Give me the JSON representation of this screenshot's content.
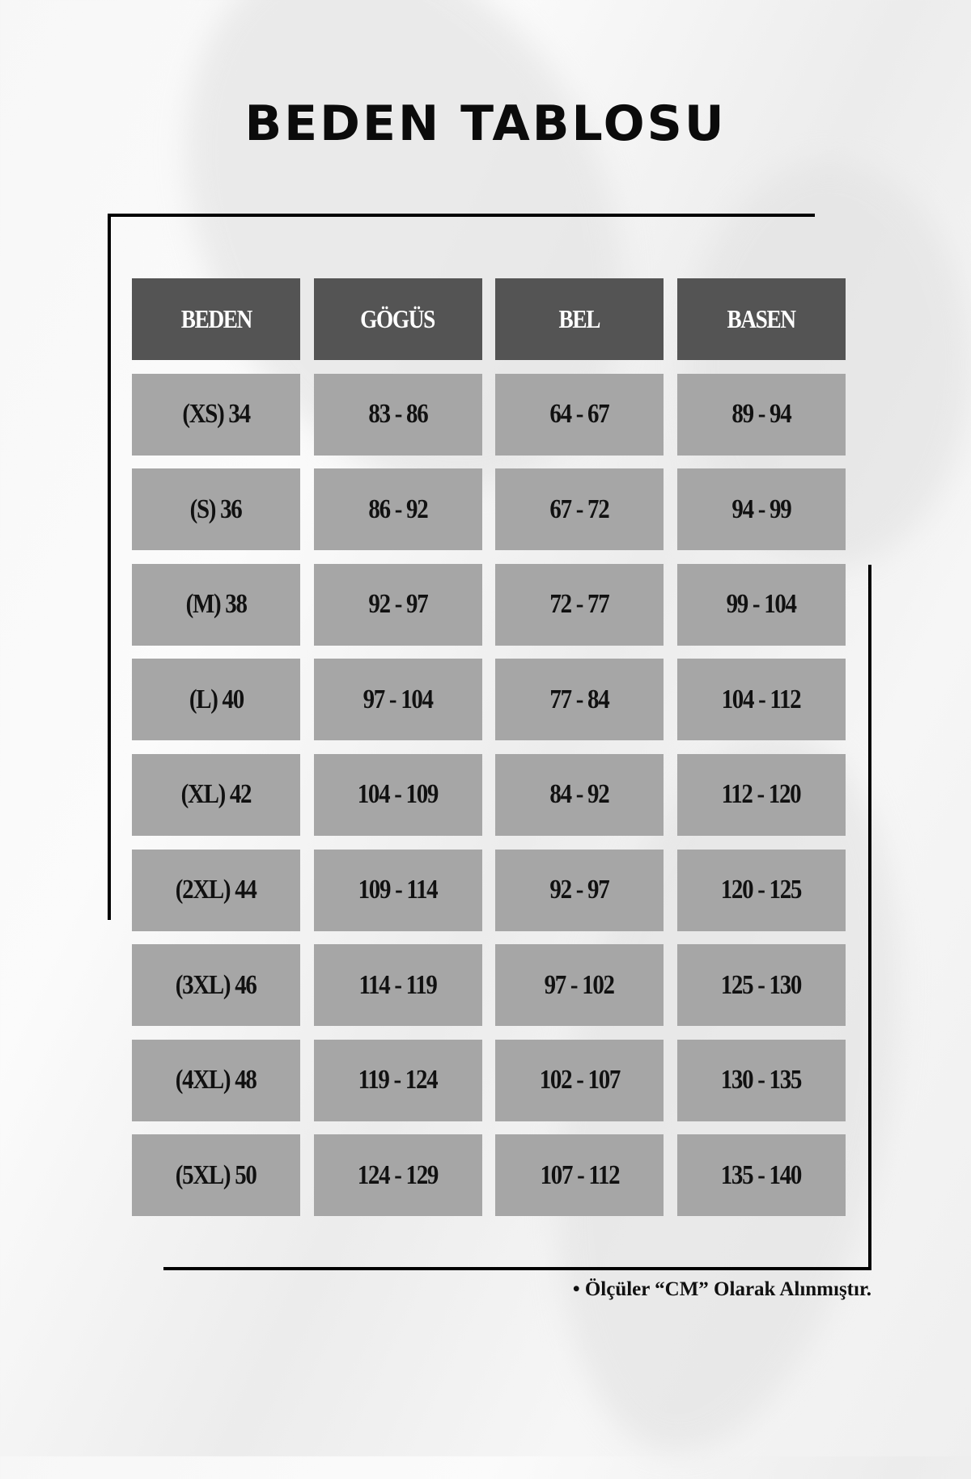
{
  "title": "BEDEN TABLOSU",
  "colors": {
    "header_bg": "#545454",
    "cell_bg": "#a6a6a6",
    "header_text": "#ffffff",
    "cell_text": "#111111"
  },
  "table": {
    "headers": [
      "BEDEN",
      "GÖGÜS",
      "BEL",
      "BASEN"
    ],
    "rows": [
      [
        "(XS) 34",
        "83 - 86",
        "64 - 67",
        "89 - 94"
      ],
      [
        "(S) 36",
        "86 - 92",
        "67 - 72",
        "94 - 99"
      ],
      [
        "(M) 38",
        "92 - 97",
        "72 - 77",
        "99 - 104"
      ],
      [
        "(L) 40",
        "97 - 104",
        "77 - 84",
        "104 - 112"
      ],
      [
        "(XL) 42",
        "104 - 109",
        "84 - 92",
        "112 - 120"
      ],
      [
        "(2XL) 44",
        "109 - 114",
        "92 - 97",
        "120 - 125"
      ],
      [
        "(3XL) 46",
        "114 - 119",
        "97 - 102",
        "125 - 130"
      ],
      [
        "(4XL) 48",
        "119 - 124",
        "102 - 107",
        "130 - 135"
      ],
      [
        "(5XL) 50",
        "124 - 129",
        "107 - 112",
        "135 - 140"
      ]
    ]
  },
  "footnote": "• Ölçüler “CM” Olarak Alınmıştır."
}
